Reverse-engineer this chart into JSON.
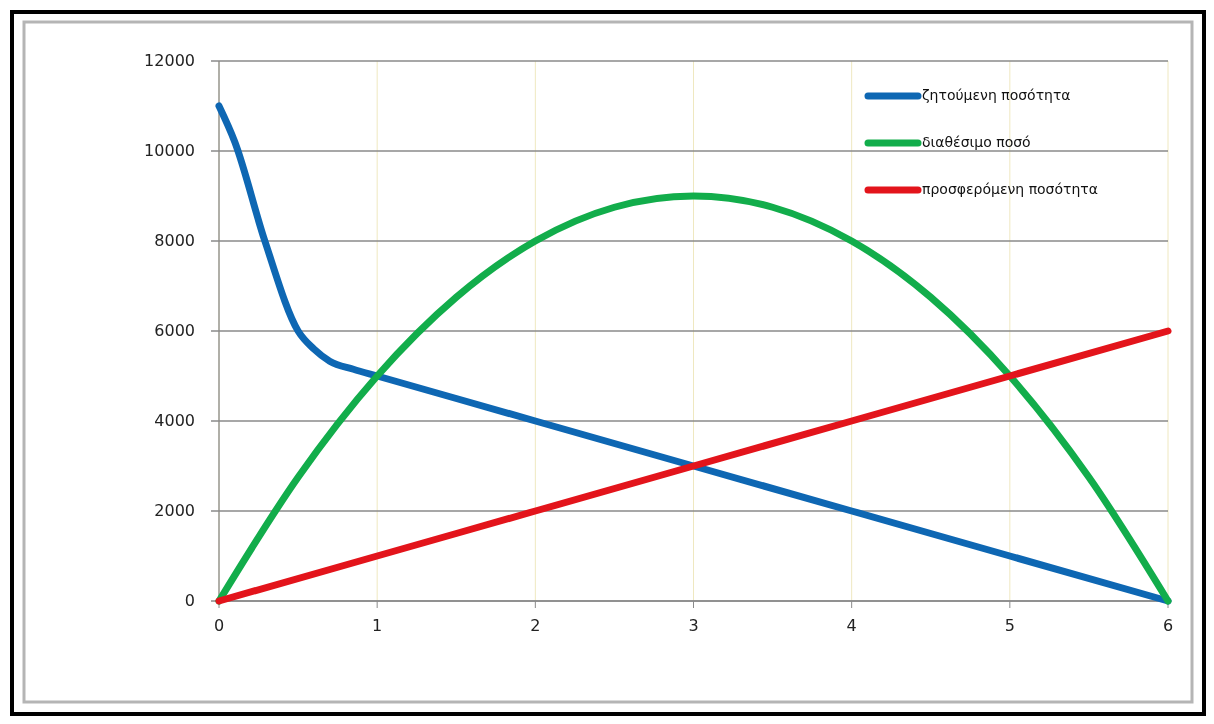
{
  "chart_data": {
    "type": "line",
    "xlim": [
      0,
      6
    ],
    "xticks": [
      0,
      1,
      2,
      3,
      4,
      5,
      6
    ],
    "ylim": [
      0,
      12000
    ],
    "yticks": [
      0,
      2000,
      4000,
      6000,
      8000,
      10000,
      12000
    ],
    "grid": true,
    "legend": "top right",
    "series": [
      {
        "name": "ζητούμενη ποσότητα",
        "color": "#0e67b3",
        "x": [
          0,
          0.1,
          0.29,
          0.5,
          0.6,
          0.7,
          0.85,
          1,
          2,
          3,
          4,
          5,
          6
        ],
        "values": [
          11000,
          10200,
          8000,
          6000,
          5600,
          5330,
          5150,
          5000,
          4000,
          3000,
          2000,
          1000,
          0
        ]
      },
      {
        "name": "διαθέσιμο ποσό",
        "color": "#12ad4b",
        "x": [
          0,
          0.5,
          1,
          1.5,
          2,
          2.5,
          3,
          3.5,
          4,
          4.5,
          5,
          5.5,
          6
        ],
        "values": [
          0,
          2750,
          5000,
          6750,
          8000,
          8750,
          9000,
          8750,
          8000,
          6750,
          5000,
          2750,
          0
        ]
      },
      {
        "name": "προσφερόμενη ποσότητα",
        "color": "#e3141b",
        "x": [
          0,
          1,
          2,
          3,
          4,
          5,
          6
        ],
        "values": [
          0,
          1000,
          2000,
          3000,
          4000,
          5000,
          6000
        ]
      }
    ]
  }
}
